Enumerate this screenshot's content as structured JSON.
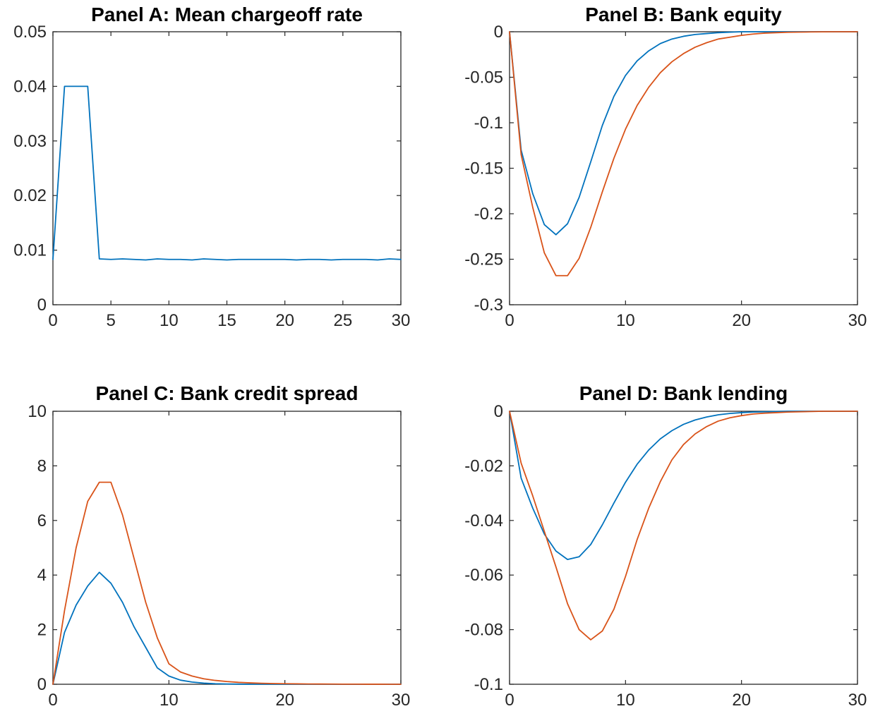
{
  "chart_data": [
    {
      "id": "panel-a",
      "type": "line",
      "title": "Panel A: Mean chargeoff rate",
      "xlabel": "",
      "ylabel": "",
      "xlim": [
        0,
        30
      ],
      "ylim": [
        0,
        0.05
      ],
      "xticks": [
        0,
        5,
        10,
        15,
        20,
        25,
        30
      ],
      "xtick_labels": [
        "0",
        "5",
        "10",
        "15",
        "20",
        "25",
        "30"
      ],
      "yticks": [
        0,
        0.01,
        0.02,
        0.03,
        0.04,
        0.05
      ],
      "ytick_labels": [
        "0",
        "0.01",
        "0.02",
        "0.03",
        "0.04",
        "0.05"
      ],
      "grid": false,
      "x": [
        0,
        1,
        2,
        3,
        4,
        5,
        6,
        7,
        8,
        9,
        10,
        11,
        12,
        13,
        14,
        15,
        16,
        17,
        18,
        19,
        20,
        21,
        22,
        23,
        24,
        25,
        26,
        27,
        28,
        29,
        30
      ],
      "series": [
        {
          "color": "#0072BD",
          "values": [
            0.0083,
            0.04,
            0.04,
            0.04,
            0.0084,
            0.0083,
            0.0084,
            0.0083,
            0.0082,
            0.0084,
            0.0083,
            0.0083,
            0.0082,
            0.0084,
            0.0083,
            0.0082,
            0.0083,
            0.0083,
            0.0083,
            0.0083,
            0.0083,
            0.0082,
            0.0083,
            0.0083,
            0.0082,
            0.0083,
            0.0083,
            0.0083,
            0.0082,
            0.0084,
            0.0083
          ]
        }
      ]
    },
    {
      "id": "panel-b",
      "type": "line",
      "title": "Panel B: Bank equity",
      "xlabel": "",
      "ylabel": "",
      "xlim": [
        0,
        30
      ],
      "ylim": [
        -0.3,
        0
      ],
      "xticks": [
        0,
        10,
        20,
        30
      ],
      "xtick_labels": [
        "0",
        "10",
        "20",
        "30"
      ],
      "yticks": [
        -0.3,
        -0.25,
        -0.2,
        -0.15,
        -0.1,
        -0.05,
        0
      ],
      "ytick_labels": [
        "-0.3",
        "-0.25",
        "-0.2",
        "-0.15",
        "-0.1",
        "-0.05",
        "0"
      ],
      "grid": false,
      "x": [
        0,
        1,
        2,
        3,
        4,
        5,
        6,
        7,
        8,
        9,
        10,
        11,
        12,
        13,
        14,
        15,
        16,
        17,
        18,
        19,
        20,
        21,
        22,
        23,
        24,
        25,
        26,
        27,
        28,
        29,
        30
      ],
      "series": [
        {
          "color": "#0072BD",
          "values": [
            0,
            -0.13,
            -0.178,
            -0.212,
            -0.223,
            -0.211,
            -0.182,
            -0.143,
            -0.103,
            -0.071,
            -0.048,
            -0.032,
            -0.021,
            -0.013,
            -0.008,
            -0.005,
            -0.003,
            -0.002,
            -0.001,
            -0.0005,
            0,
            0,
            0,
            0,
            0,
            0,
            0,
            0,
            0,
            0,
            0
          ]
        },
        {
          "color": "#D95319",
          "values": [
            0,
            -0.135,
            -0.193,
            -0.243,
            -0.268,
            -0.268,
            -0.249,
            -0.215,
            -0.176,
            -0.139,
            -0.107,
            -0.081,
            -0.061,
            -0.045,
            -0.033,
            -0.024,
            -0.017,
            -0.012,
            -0.008,
            -0.006,
            -0.004,
            -0.0025,
            -0.0015,
            -0.001,
            -0.0006,
            -0.0004,
            -0.0002,
            -0.0001,
            0,
            0,
            0
          ]
        }
      ]
    },
    {
      "id": "panel-c",
      "type": "line",
      "title": "Panel C: Bank credit spread",
      "xlabel": "",
      "ylabel": "",
      "xlim": [
        0,
        30
      ],
      "ylim": [
        0,
        10
      ],
      "xticks": [
        0,
        10,
        20,
        30
      ],
      "xtick_labels": [
        "0",
        "10",
        "20",
        "30"
      ],
      "yticks": [
        0,
        2,
        4,
        6,
        8,
        10
      ],
      "ytick_labels": [
        "0",
        "2",
        "4",
        "6",
        "8",
        "10"
      ],
      "grid": false,
      "x": [
        0,
        1,
        2,
        3,
        4,
        5,
        6,
        7,
        8,
        9,
        10,
        11,
        12,
        13,
        14,
        15,
        16,
        17,
        18,
        19,
        20,
        21,
        22,
        23,
        24,
        25,
        26,
        27,
        28,
        29,
        30
      ],
      "series": [
        {
          "color": "#0072BD",
          "values": [
            0,
            1.9,
            2.9,
            3.6,
            4.1,
            3.7,
            3.0,
            2.1,
            1.35,
            0.6,
            0.3,
            0.15,
            0.08,
            0.04,
            0.02,
            0.01,
            0.005,
            0,
            0,
            0,
            0,
            0,
            0,
            0,
            0,
            0,
            0,
            0,
            0,
            0,
            0
          ]
        },
        {
          "color": "#D95319",
          "values": [
            0,
            2.7,
            5.0,
            6.7,
            7.4,
            7.4,
            6.2,
            4.6,
            3.0,
            1.7,
            0.75,
            0.45,
            0.3,
            0.2,
            0.14,
            0.1,
            0.07,
            0.05,
            0.035,
            0.025,
            0.02,
            0.015,
            0.01,
            0.008,
            0.006,
            0.004,
            0.003,
            0.002,
            0.001,
            0,
            0
          ]
        }
      ]
    },
    {
      "id": "panel-d",
      "type": "line",
      "title": "Panel D: Bank lending",
      "xlabel": "",
      "ylabel": "",
      "xlim": [
        0,
        30
      ],
      "ylim": [
        -0.1,
        0
      ],
      "xticks": [
        0,
        10,
        20,
        30
      ],
      "xtick_labels": [
        "0",
        "10",
        "20",
        "30"
      ],
      "yticks": [
        -0.1,
        -0.08,
        -0.06,
        -0.04,
        -0.02,
        0
      ],
      "ytick_labels": [
        "-0.1",
        "-0.08",
        "-0.06",
        "-0.04",
        "-0.02",
        "0"
      ],
      "grid": false,
      "x": [
        0,
        1,
        2,
        3,
        4,
        5,
        6,
        7,
        8,
        9,
        10,
        11,
        12,
        13,
        14,
        15,
        16,
        17,
        18,
        19,
        20,
        21,
        22,
        23,
        24,
        25,
        26,
        27,
        28,
        29,
        30
      ],
      "series": [
        {
          "color": "#0072BD",
          "values": [
            0,
            -0.0245,
            -0.0355,
            -0.045,
            -0.0512,
            -0.0543,
            -0.0533,
            -0.0488,
            -0.0416,
            -0.0336,
            -0.026,
            -0.0194,
            -0.0142,
            -0.0101,
            -0.0071,
            -0.0048,
            -0.0032,
            -0.0021,
            -0.0013,
            -0.0008,
            -0.0005,
            -0.0003,
            -0.0002,
            -0.0001,
            0,
            0,
            0,
            0,
            0,
            0,
            0
          ]
        },
        {
          "color": "#D95319",
          "values": [
            0,
            -0.019,
            -0.031,
            -0.044,
            -0.057,
            -0.0705,
            -0.08,
            -0.0837,
            -0.0805,
            -0.0725,
            -0.0605,
            -0.047,
            -0.0355,
            -0.0258,
            -0.0178,
            -0.0122,
            -0.0083,
            -0.0056,
            -0.0036,
            -0.0024,
            -0.0016,
            -0.001,
            -0.0007,
            -0.0005,
            -0.0003,
            -0.0002,
            -0.0001,
            0,
            0,
            0,
            0
          ]
        }
      ]
    }
  ]
}
